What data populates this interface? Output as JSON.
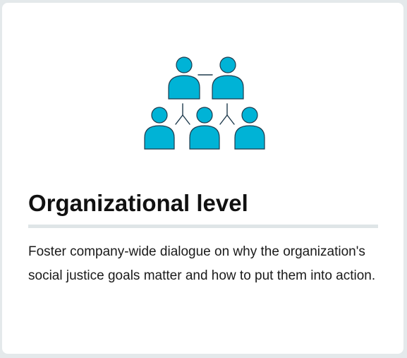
{
  "card": {
    "title": "Organizational level",
    "description": "Foster company-wide dialogue on why the organization's social justice goals matter and how to put them into action.",
    "icon": "organization-hierarchy-icon"
  },
  "colors": {
    "icon_fill": "#00b3d6",
    "icon_stroke": "#1f3b4d",
    "divider": "#dfe5e7",
    "background": "#e4e9eb",
    "card": "#ffffff"
  }
}
